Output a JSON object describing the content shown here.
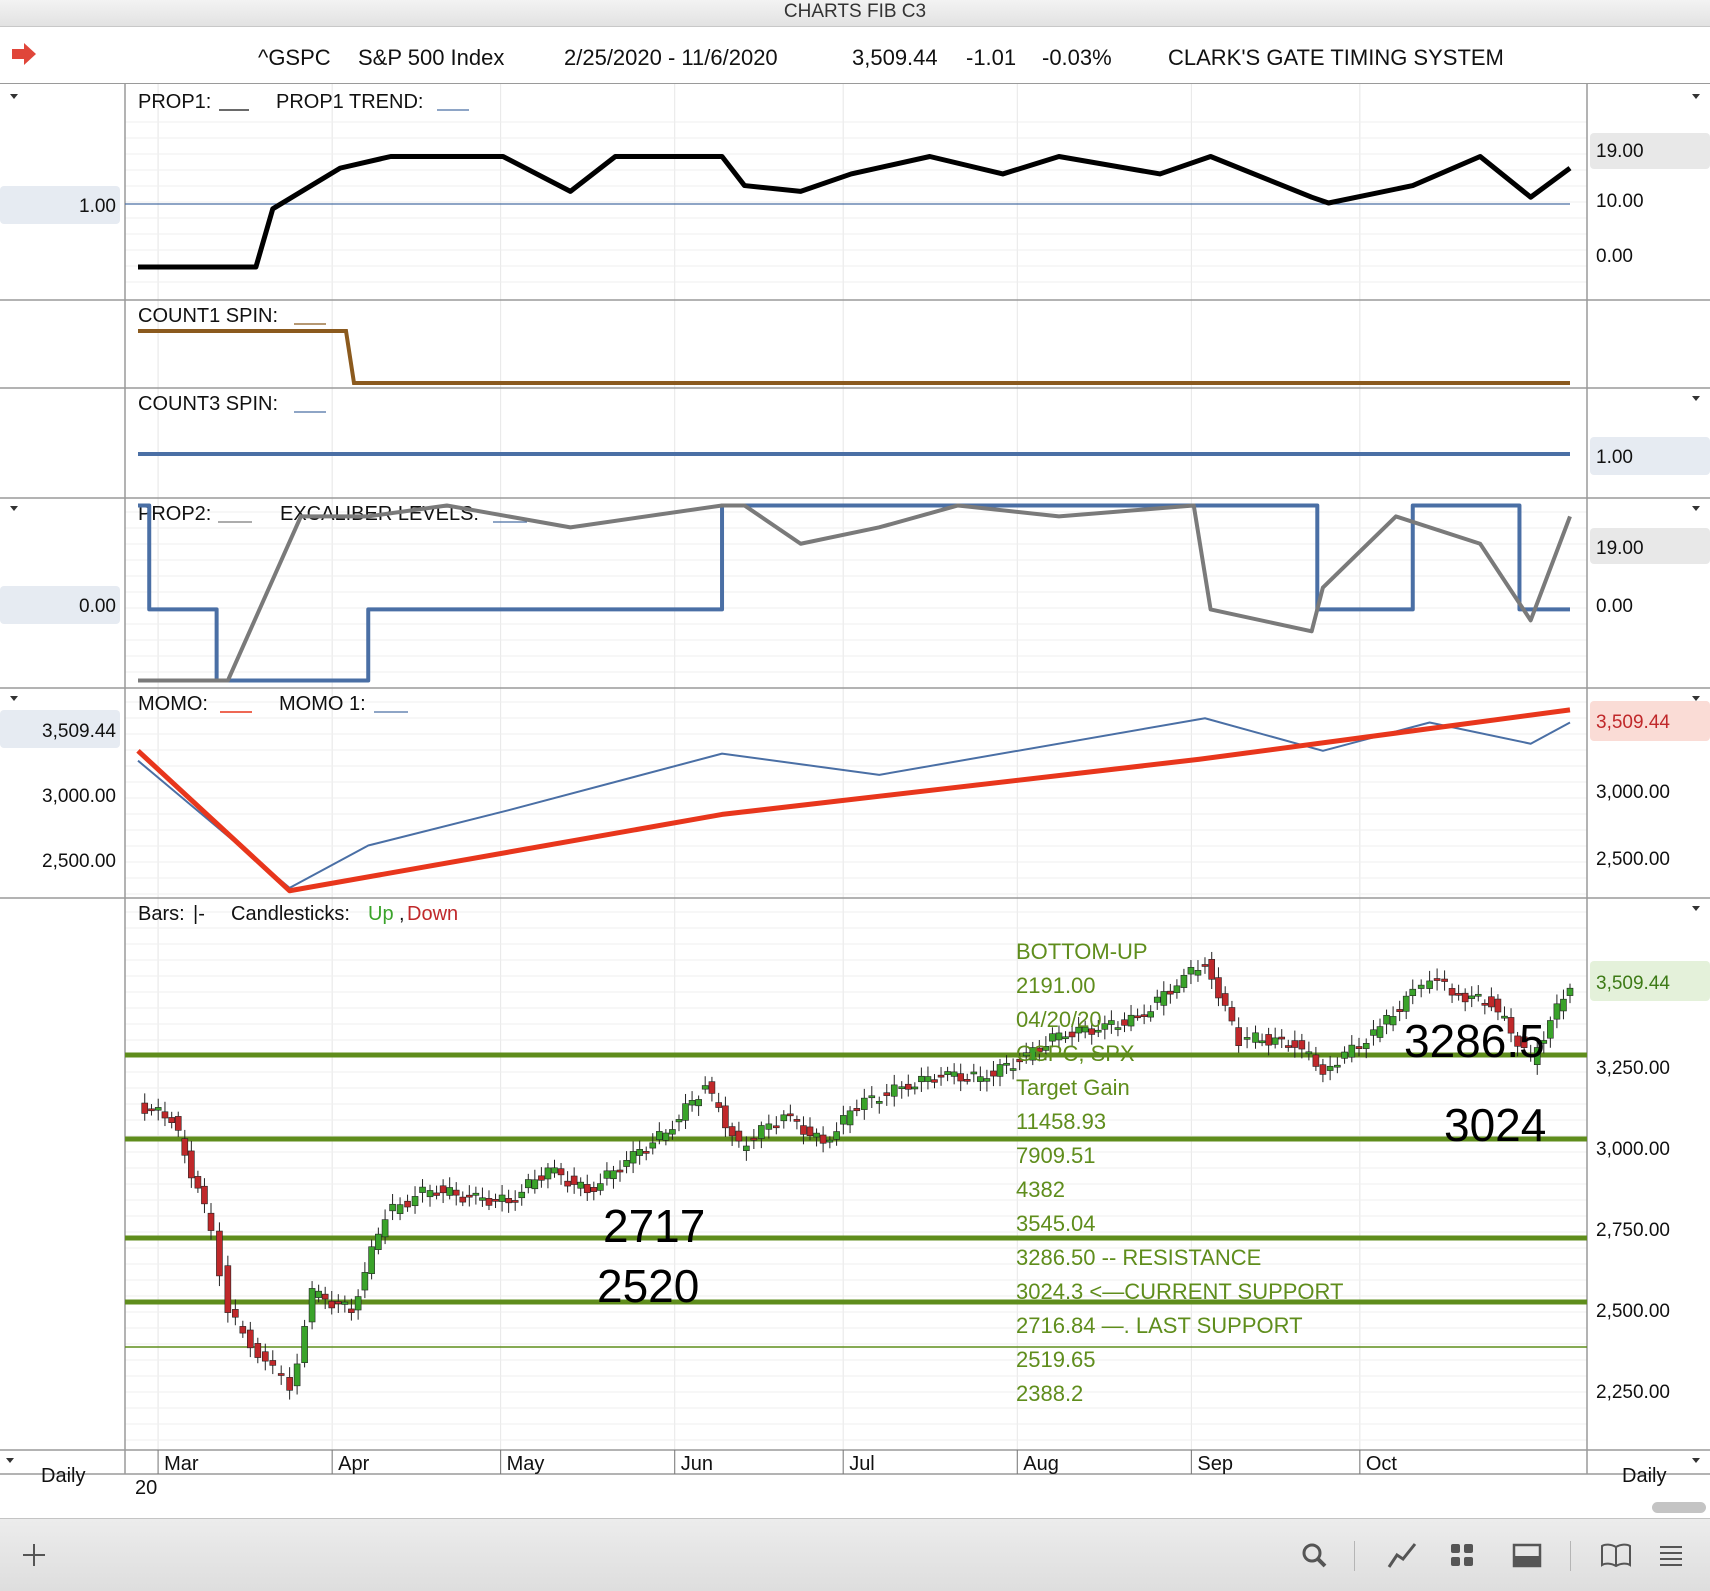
{
  "window": {
    "title": "CHARTS FIB C3"
  },
  "header": {
    "symbol": "^GSPC",
    "name": "S&P 500 Index",
    "date_range": "2/25/2020 - 11/6/2020",
    "last": "3,509.44",
    "change": "-1.01",
    "change_pct": "-0.03%",
    "system": "CLARK'S GATE TIMING SYSTEM",
    "icon": "red-arrow-icon"
  },
  "panels": {
    "prop1": {
      "label1": "PROP1:",
      "label2": "PROP1 TREND:",
      "left_value": "1.00",
      "right_ticks": [
        "19.00",
        "10.00",
        "0.00"
      ]
    },
    "count1": {
      "label": "COUNT1 SPIN:"
    },
    "count3": {
      "label": "COUNT3 SPIN:",
      "right_value": "1.00"
    },
    "prop2": {
      "label1": "PROP2:",
      "label2": "EXCALIBER LEVELS:",
      "left_value": "0.00",
      "right_ticks": [
        "19.00",
        "0.00"
      ]
    },
    "momo": {
      "label1": "MOMO:",
      "label2": "MOMO 1:",
      "left_value": "3,509.44",
      "left_ticks": [
        "3,000.00",
        "2,500.00"
      ],
      "right_value": "3,509.44",
      "right_ticks": [
        "3,000.00",
        "2,500.00"
      ]
    },
    "price": {
      "legend_bars": "Bars:",
      "legend_bars_sym": "|-",
      "legend_candles": "Candlesticks:",
      "legend_up": "Up",
      "legend_sep": ",",
      "legend_down": "Down",
      "right_value": "3,509.44",
      "right_ticks": [
        "3,250.00",
        "3,000.00",
        "2,750.00",
        "2,500.00",
        "2,250.00"
      ],
      "notes": [
        "BOTTOM-UP",
        "2191.00",
        "04/20/20",
        "GSPC, SPX",
        "Target Gain",
        "11458.93",
        "7909.51",
        "4382",
        "3545.04",
        "3286.50 -- RESISTANCE",
        "3024.3  <—CURRENT SUPPORT",
        "2716.84  —. LAST SUPPORT",
        "2519.65",
        "2388.2"
      ],
      "level_labels": [
        "3286.5",
        "3024",
        "2717",
        "2520"
      ]
    }
  },
  "time_axis": {
    "period_left": "Daily",
    "period_right": "Daily",
    "year": "20",
    "months": [
      "Mar",
      "Apr",
      "May",
      "Jun",
      "Jul",
      "Aug",
      "Sep",
      "Oct"
    ]
  },
  "footer_icons": [
    "add-icon",
    "search-icon",
    "line-chart-icon",
    "grid-icon",
    "panel-icon",
    "book-icon",
    "menu-icon"
  ],
  "colors": {
    "up": "#3aa32a",
    "down": "#c0282a",
    "level_line": "#5f8d1c",
    "momo": "#e8361c",
    "momo1": "#4a6fa5",
    "count1": "#8b5a1e",
    "excaliber": "#4a6fa5",
    "prop2": "#7a7a7a"
  },
  "chart_data": [
    {
      "type": "line",
      "title": "PROP1",
      "series": [
        {
          "name": "PROP1",
          "x": [
            "Feb 25",
            "Mar 10",
            "Mar 17",
            "Mar 20",
            "Apr 1",
            "Apr 10",
            "Apr 30",
            "May 12",
            "May 20",
            "Jun 8",
            "Jun 12",
            "Jun 22",
            "Jul 1",
            "Jul 15",
            "Jul 28",
            "Aug 7",
            "Aug 25",
            "Sep 3",
            "Sep 21",
            "Sep 24",
            "Oct 9",
            "Oct 21",
            "Oct 30",
            "Nov 6"
          ],
          "values": [
            0,
            0,
            0,
            10,
            17,
            19,
            19,
            13,
            19,
            19,
            14,
            13,
            16,
            19,
            16,
            19,
            16,
            19,
            12,
            11,
            14,
            19,
            12,
            17
          ]
        }
      ],
      "ylim": [
        -5,
        27
      ],
      "reference_line": 1.0
    },
    {
      "type": "line",
      "title": "COUNT1 SPIN",
      "series": [
        {
          "x": [
            "Feb 25",
            "Mar 20",
            "Mar 23",
            "Nov 6"
          ],
          "values": [
            2,
            2,
            1,
            1
          ]
        }
      ]
    },
    {
      "type": "line",
      "title": "COUNT3 SPIN",
      "series": [
        {
          "x": [
            "Feb 25",
            "Nov 6"
          ],
          "values": [
            1,
            1
          ]
        }
      ]
    },
    {
      "type": "line",
      "title": "PROP2",
      "series": [
        {
          "name": "PROP2",
          "x": [
            "Feb 25",
            "Mar 12",
            "Mar 25",
            "Apr 6",
            "Apr 20",
            "May 12",
            "Jun 8",
            "Jun 12",
            "Jun 22",
            "Jul 6",
            "Jul 20",
            "Aug 7",
            "Aug 31",
            "Sep 3",
            "Sep 21",
            "Sep 23",
            "Oct 6",
            "Oct 21",
            "Oct 30",
            "Nov 6"
          ],
          "values": [
            -13,
            -13,
            17,
            17,
            19,
            15,
            19,
            19,
            12,
            15,
            19,
            17,
            19,
            0,
            -4,
            4,
            17,
            12,
            -2,
            17
          ]
        },
        {
          "name": "EXCALIBER LEVELS",
          "x": [
            "Feb 25",
            "Feb 27",
            "Mar 10",
            "Apr 6",
            "Jun 8",
            "Aug 31",
            "Sep 22",
            "Oct 9",
            "Oct 28",
            "Nov 6"
          ],
          "values": [
            19,
            0,
            -13,
            0,
            19,
            19,
            0,
            19,
            0,
            0
          ]
        }
      ],
      "ylim": [
        -14,
        20
      ]
    },
    {
      "type": "line",
      "title": "MOMO",
      "series": [
        {
          "name": "MOMO",
          "x": [
            "Feb 25",
            "Mar 23",
            "Jun 8",
            "Sep 1",
            "Nov 6"
          ],
          "values": [
            3220,
            2230,
            2770,
            3160,
            3509.44
          ]
        },
        {
          "name": "MOMO 1",
          "x": [
            "Feb 25",
            "Mar 23",
            "Apr 6",
            "May 1",
            "Jun 8",
            "Jul 6",
            "Sep 2",
            "Sep 23",
            "Oct 12",
            "Oct 30",
            "Nov 6"
          ],
          "values": [
            3150,
            2250,
            2550,
            2800,
            3200,
            3050,
            3450,
            3220,
            3420,
            3270,
            3420
          ]
        }
      ],
      "ylim": [
        2200,
        3650
      ]
    },
    {
      "type": "candlestick",
      "title": "S&P 500 Index",
      "approximate_closes": {
        "x": [
          "Feb 25",
          "Mar 2",
          "Mar 9",
          "Mar 12",
          "Mar 16",
          "Mar 20",
          "Mar 23",
          "Mar 27",
          "Apr 3",
          "Apr 9",
          "Apr 17",
          "Apr 24",
          "May 1",
          "May 8",
          "May 15",
          "May 22",
          "May 29",
          "Jun 5",
          "Jun 11",
          "Jun 19",
          "Jun 26",
          "Jul 2",
          "Jul 10",
          "Jul 17",
          "Jul 24",
          "Jul 31",
          "Aug 7",
          "Aug 14",
          "Aug 21",
          "Aug 28",
          "Sep 2",
          "Sep 8",
          "Sep 11",
          "Sep 18",
          "Sep 23",
          "Oct 2",
          "Oct 9",
          "Oct 12",
          "Oct 16",
          "Oct 23",
          "Oct 30",
          "Nov 6"
        ],
        "values": [
          3130,
          3090,
          2750,
          2480,
          2390,
          2300,
          2240,
          2540,
          2490,
          2790,
          2870,
          2840,
          2830,
          2930,
          2860,
          2955,
          3045,
          3190,
          3000,
          3100,
          3010,
          3130,
          3185,
          3225,
          3215,
          3270,
          3350,
          3370,
          3400,
          3510,
          3580,
          3330,
          3340,
          3320,
          3240,
          3350,
          3480,
          3535,
          3480,
          3450,
          3270,
          3509.44
        ]
      },
      "support_resistance": [
        3286.5,
        3024.3,
        2716.84,
        2519.65,
        2388.2
      ],
      "ylim": [
        2150,
        3650
      ]
    }
  ]
}
